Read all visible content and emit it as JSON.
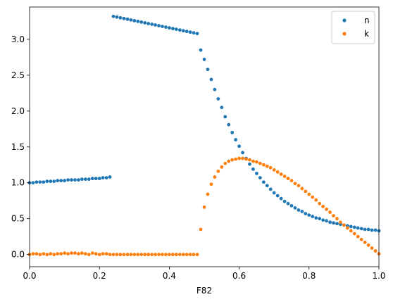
{
  "chart_data": {
    "type": "scatter",
    "title": "",
    "xlabel": "F82",
    "ylabel": "",
    "xlim": [
      0,
      1
    ],
    "ylim": [
      -0.17,
      3.45
    ],
    "xticks": [
      0.0,
      0.2,
      0.4,
      0.6,
      0.8,
      1.0
    ],
    "xtick_labels": [
      "0.0",
      "0.2",
      "0.4",
      "0.6",
      "0.8",
      "1.0"
    ],
    "yticks": [
      0.0,
      0.5,
      1.0,
      1.5,
      2.0,
      2.5,
      3.0
    ],
    "ytick_labels": [
      "0.0",
      "0.5",
      "1.0",
      "1.5",
      "2.0",
      "2.5",
      "3.0"
    ],
    "grid": false,
    "legend": "top-right",
    "series": [
      {
        "name": "n",
        "color": "#1f77b4",
        "x": [
          0.0,
          0.01,
          0.02,
          0.03,
          0.04,
          0.05,
          0.06,
          0.07,
          0.08,
          0.09,
          0.1,
          0.11,
          0.12,
          0.13,
          0.14,
          0.15,
          0.16,
          0.17,
          0.18,
          0.19,
          0.2,
          0.21,
          0.22,
          0.23,
          0.24,
          0.25,
          0.26,
          0.27,
          0.28,
          0.29,
          0.3,
          0.31,
          0.32,
          0.33,
          0.34,
          0.35,
          0.36,
          0.37,
          0.38,
          0.39,
          0.4,
          0.41,
          0.42,
          0.43,
          0.44,
          0.45,
          0.46,
          0.47,
          0.48,
          0.49,
          0.5,
          0.51,
          0.52,
          0.53,
          0.54,
          0.55,
          0.56,
          0.57,
          0.58,
          0.59,
          0.6,
          0.61,
          0.62,
          0.63,
          0.64,
          0.65,
          0.66,
          0.67,
          0.68,
          0.69,
          0.7,
          0.71,
          0.72,
          0.73,
          0.74,
          0.75,
          0.76,
          0.77,
          0.78,
          0.79,
          0.8,
          0.81,
          0.82,
          0.83,
          0.84,
          0.85,
          0.86,
          0.87,
          0.88,
          0.89,
          0.9,
          0.91,
          0.92,
          0.93,
          0.94,
          0.95,
          0.96,
          0.97,
          0.98,
          0.99,
          1.0
        ],
        "y": [
          1.0,
          1.0,
          1.01,
          1.01,
          1.01,
          1.02,
          1.02,
          1.02,
          1.03,
          1.03,
          1.03,
          1.04,
          1.04,
          1.04,
          1.04,
          1.05,
          1.05,
          1.05,
          1.06,
          1.06,
          1.06,
          1.07,
          1.07,
          1.08,
          3.32,
          3.31,
          3.3,
          3.29,
          3.28,
          3.27,
          3.26,
          3.25,
          3.24,
          3.23,
          3.22,
          3.21,
          3.2,
          3.19,
          3.18,
          3.17,
          3.16,
          3.15,
          3.14,
          3.13,
          3.12,
          3.11,
          3.1,
          3.09,
          3.08,
          2.85,
          2.72,
          2.58,
          2.44,
          2.3,
          2.17,
          2.05,
          1.92,
          1.81,
          1.7,
          1.6,
          1.51,
          1.42,
          1.34,
          1.26,
          1.19,
          1.13,
          1.07,
          1.01,
          0.96,
          0.91,
          0.86,
          0.82,
          0.78,
          0.74,
          0.71,
          0.68,
          0.65,
          0.62,
          0.6,
          0.57,
          0.55,
          0.53,
          0.51,
          0.5,
          0.48,
          0.47,
          0.45,
          0.44,
          0.43,
          0.42,
          0.41,
          0.4,
          0.39,
          0.38,
          0.37,
          0.36,
          0.35,
          0.35,
          0.34,
          0.34,
          0.33
        ]
      },
      {
        "name": "k",
        "color": "#ff7f0e",
        "x": [
          0.0,
          0.01,
          0.02,
          0.03,
          0.04,
          0.05,
          0.06,
          0.07,
          0.08,
          0.09,
          0.1,
          0.11,
          0.12,
          0.13,
          0.14,
          0.15,
          0.16,
          0.17,
          0.18,
          0.19,
          0.2,
          0.21,
          0.22,
          0.23,
          0.24,
          0.25,
          0.26,
          0.27,
          0.28,
          0.29,
          0.3,
          0.31,
          0.32,
          0.33,
          0.34,
          0.35,
          0.36,
          0.37,
          0.38,
          0.39,
          0.4,
          0.41,
          0.42,
          0.43,
          0.44,
          0.45,
          0.46,
          0.47,
          0.48,
          0.49,
          0.5,
          0.51,
          0.52,
          0.53,
          0.54,
          0.55,
          0.56,
          0.57,
          0.58,
          0.59,
          0.6,
          0.61,
          0.62,
          0.63,
          0.64,
          0.65,
          0.66,
          0.67,
          0.68,
          0.69,
          0.7,
          0.71,
          0.72,
          0.73,
          0.74,
          0.75,
          0.76,
          0.77,
          0.78,
          0.79,
          0.8,
          0.81,
          0.82,
          0.83,
          0.84,
          0.85,
          0.86,
          0.87,
          0.88,
          0.89,
          0.9,
          0.91,
          0.92,
          0.93,
          0.94,
          0.95,
          0.96,
          0.97,
          0.98,
          0.99,
          1.0
        ],
        "y": [
          0.0,
          0.01,
          0.01,
          0.0,
          0.01,
          0.0,
          0.01,
          0.0,
          0.01,
          0.01,
          0.02,
          0.01,
          0.02,
          0.02,
          0.01,
          0.02,
          0.01,
          0.0,
          0.02,
          0.01,
          0.0,
          0.01,
          0.01,
          0.0,
          0.0,
          0.0,
          0.0,
          0.0,
          0.0,
          0.0,
          0.0,
          0.0,
          0.0,
          0.0,
          0.0,
          0.0,
          0.0,
          0.0,
          0.0,
          0.0,
          0.0,
          0.0,
          0.0,
          0.0,
          0.0,
          0.0,
          0.0,
          0.0,
          0.0,
          0.35,
          0.66,
          0.84,
          0.98,
          1.08,
          1.16,
          1.22,
          1.27,
          1.3,
          1.32,
          1.33,
          1.34,
          1.34,
          1.33,
          1.32,
          1.3,
          1.29,
          1.27,
          1.25,
          1.23,
          1.21,
          1.18,
          1.15,
          1.12,
          1.09,
          1.06,
          1.03,
          0.99,
          0.96,
          0.92,
          0.88,
          0.84,
          0.8,
          0.76,
          0.71,
          0.67,
          0.63,
          0.59,
          0.54,
          0.5,
          0.45,
          0.41,
          0.37,
          0.33,
          0.29,
          0.25,
          0.21,
          0.17,
          0.13,
          0.09,
          0.05,
          0.01
        ]
      }
    ]
  }
}
